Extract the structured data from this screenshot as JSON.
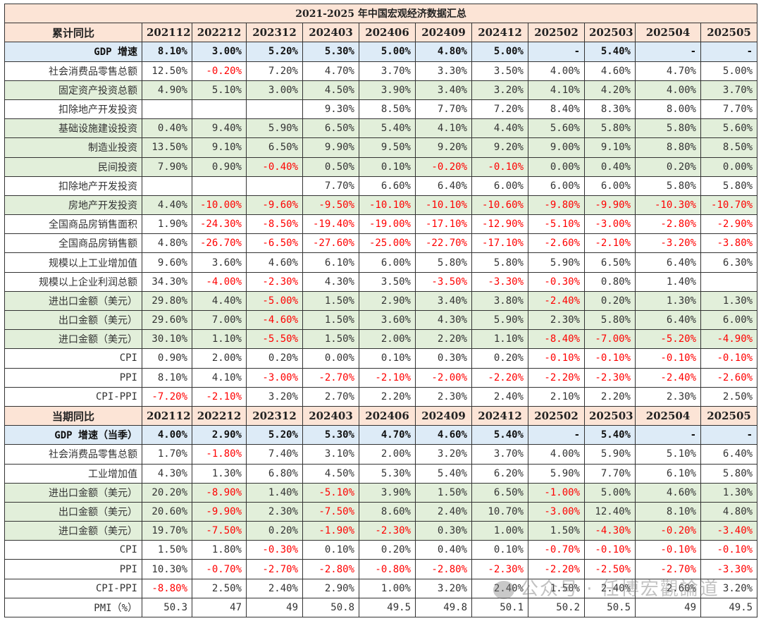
{
  "title": "2021-2025 年中国宏观经济数据汇总",
  "periods": [
    "202112",
    "202212",
    "202312",
    "202403",
    "202406",
    "202409",
    "202412",
    "202502",
    "202503",
    "202504",
    "202505"
  ],
  "sections": [
    {
      "header": "累计同比",
      "rows": [
        {
          "label": "GDP 增速",
          "style": "blue",
          "values": [
            "8.10%",
            "3.00%",
            "5.20%",
            "5.30%",
            "5.00%",
            "4.80%",
            "5.00%",
            "-",
            "5.40%",
            "-",
            "-"
          ]
        },
        {
          "label": "社会消费品零售总额",
          "style": "white",
          "values": [
            "12.50%",
            "-0.20%",
            "7.20%",
            "4.70%",
            "3.70%",
            "3.30%",
            "3.50%",
            "4.00%",
            "4.60%",
            "4.70%",
            "5.00%"
          ]
        },
        {
          "label": "固定资产投资总额",
          "style": "green",
          "values": [
            "4.90%",
            "5.10%",
            "3.00%",
            "4.50%",
            "3.90%",
            "3.40%",
            "3.20%",
            "4.10%",
            "4.20%",
            "4.00%",
            "3.70%"
          ]
        },
        {
          "label": "扣除地产开发投资",
          "style": "white",
          "values": [
            "",
            "",
            "",
            "9.30%",
            "8.50%",
            "7.70%",
            "7.20%",
            "8.40%",
            "8.30%",
            "8.00%",
            "7.70%"
          ]
        },
        {
          "label": "基础设施建设投资",
          "style": "green",
          "values": [
            "0.40%",
            "9.40%",
            "5.90%",
            "6.50%",
            "5.40%",
            "4.10%",
            "4.40%",
            "5.60%",
            "5.80%",
            "5.80%",
            "5.60%"
          ]
        },
        {
          "label": "制造业投资",
          "style": "green",
          "values": [
            "13.50%",
            "9.10%",
            "6.50%",
            "9.90%",
            "9.50%",
            "9.20%",
            "9.20%",
            "9.00%",
            "9.10%",
            "8.80%",
            "8.50%"
          ]
        },
        {
          "label": "民间投资",
          "style": "green",
          "values": [
            "7.90%",
            "0.90%",
            "-0.40%",
            "0.50%",
            "0.10%",
            "-0.20%",
            "-0.10%",
            "0.00%",
            "0.40%",
            "0.20%",
            "0.00%"
          ]
        },
        {
          "label": "扣除地产开发投资",
          "style": "white",
          "values": [
            "",
            "",
            "",
            "7.70%",
            "6.60%",
            "6.40%",
            "6.00%",
            "6.00%",
            "6.00%",
            "5.80%",
            "5.80%"
          ]
        },
        {
          "label": "房地产开发投资",
          "style": "green",
          "values": [
            "4.40%",
            "-10.00%",
            "-9.60%",
            "-9.50%",
            "-10.10%",
            "-10.10%",
            "-10.60%",
            "-9.80%",
            "-9.90%",
            "-10.30%",
            "-10.70%"
          ]
        },
        {
          "label": "全国商品房销售面积",
          "style": "white",
          "values": [
            "1.90%",
            "-24.30%",
            "-8.50%",
            "-19.40%",
            "-19.00%",
            "-17.10%",
            "-12.90%",
            "-5.10%",
            "-3.00%",
            "-2.80%",
            "-2.90%"
          ]
        },
        {
          "label": "全国商品房销售额",
          "style": "white",
          "values": [
            "4.80%",
            "-26.70%",
            "-6.50%",
            "-27.60%",
            "-25.00%",
            "-22.70%",
            "-17.10%",
            "-2.60%",
            "-2.10%",
            "-3.20%",
            "-3.80%"
          ]
        },
        {
          "label": "规模以上工业增加值",
          "style": "white",
          "values": [
            "9.60%",
            "3.60%",
            "4.60%",
            "6.10%",
            "6.00%",
            "5.80%",
            "5.80%",
            "5.90%",
            "6.50%",
            "6.40%",
            "6.30%"
          ]
        },
        {
          "label": "规模以上企业利润总额",
          "style": "white",
          "values": [
            "34.30%",
            "-4.00%",
            "-2.30%",
            "4.30%",
            "3.50%",
            "-3.50%",
            "-3.30%",
            "-0.30%",
            "0.80%",
            "1.40%",
            ""
          ]
        },
        {
          "label": "进出口金额（美元）",
          "style": "green",
          "values": [
            "29.80%",
            "4.40%",
            "-5.00%",
            "1.50%",
            "2.90%",
            "3.40%",
            "3.80%",
            "-2.40%",
            "0.20%",
            "1.30%",
            "1.30%"
          ]
        },
        {
          "label": "出口金额（美元）",
          "style": "green",
          "values": [
            "29.60%",
            "7.00%",
            "-4.60%",
            "1.50%",
            "3.60%",
            "4.30%",
            "5.90%",
            "2.30%",
            "5.80%",
            "6.40%",
            "6.00%"
          ]
        },
        {
          "label": "进口金额（美元）",
          "style": "green",
          "values": [
            "30.10%",
            "1.10%",
            "-5.50%",
            "1.50%",
            "2.00%",
            "2.20%",
            "1.10%",
            "-8.40%",
            "-7.00%",
            "-5.20%",
            "-4.90%"
          ]
        },
        {
          "label": "CPI",
          "style": "white",
          "values": [
            "0.90%",
            "2.00%",
            "0.20%",
            "0.00%",
            "0.10%",
            "0.30%",
            "0.20%",
            "-0.10%",
            "-0.10%",
            "-0.10%",
            "-0.10%"
          ]
        },
        {
          "label": "PPI",
          "style": "white",
          "values": [
            "8.10%",
            "4.10%",
            "-3.00%",
            "-2.70%",
            "-2.10%",
            "-2.00%",
            "-2.20%",
            "-2.20%",
            "-2.30%",
            "-2.40%",
            "-2.60%"
          ]
        },
        {
          "label": "CPI-PPI",
          "style": "white",
          "values": [
            "-7.20%",
            "-2.10%",
            "3.20%",
            "2.70%",
            "2.20%",
            "2.30%",
            "2.40%",
            "2.10%",
            "2.20%",
            "2.30%",
            "2.50%"
          ]
        }
      ]
    },
    {
      "header": "当期同比",
      "rows": [
        {
          "label": "GDP 增速（当季）",
          "style": "blue",
          "values": [
            "4.00%",
            "2.90%",
            "5.20%",
            "5.30%",
            "4.70%",
            "4.60%",
            "5.40%",
            "-",
            "5.40%",
            "-",
            "-"
          ]
        },
        {
          "label": "社会消费品零售总额",
          "style": "white",
          "values": [
            "1.70%",
            "-1.80%",
            "7.40%",
            "3.10%",
            "2.00%",
            "3.20%",
            "3.70%",
            "4.00%",
            "5.90%",
            "5.10%",
            "6.40%"
          ]
        },
        {
          "label": "工业增加值",
          "style": "white",
          "values": [
            "4.30%",
            "1.30%",
            "6.80%",
            "4.50%",
            "5.30%",
            "5.40%",
            "6.20%",
            "5.90%",
            "7.70%",
            "6.10%",
            "5.80%"
          ]
        },
        {
          "label": "进出口金额（美元）",
          "style": "green",
          "values": [
            "20.20%",
            "-8.90%",
            "1.40%",
            "-5.10%",
            "3.90%",
            "1.50%",
            "6.50%",
            "-1.00%",
            "5.00%",
            "4.60%",
            "1.30%"
          ]
        },
        {
          "label": "出口金额（美元）",
          "style": "green",
          "values": [
            "20.60%",
            "-9.90%",
            "2.30%",
            "-7.50%",
            "8.60%",
            "2.40%",
            "10.70%",
            "-3.00%",
            "12.40%",
            "8.10%",
            "4.80%"
          ]
        },
        {
          "label": "进口金额（美元）",
          "style": "green",
          "values": [
            "19.70%",
            "-7.50%",
            "0.20%",
            "-1.90%",
            "-2.30%",
            "0.30%",
            "1.00%",
            "1.50%",
            "-4.30%",
            "-0.20%",
            "-3.40%"
          ]
        },
        {
          "label": "CPI",
          "style": "white",
          "values": [
            "1.50%",
            "1.80%",
            "-0.30%",
            "0.10%",
            "0.20%",
            "0.40%",
            "0.10%",
            "-0.70%",
            "-0.10%",
            "-0.10%",
            "-0.10%"
          ]
        },
        {
          "label": "PPI",
          "style": "white",
          "values": [
            "10.30%",
            "-0.70%",
            "-2.70%",
            "-2.80%",
            "-0.80%",
            "-2.80%",
            "-2.30%",
            "-2.20%",
            "-2.50%",
            "-2.70%",
            "-3.30%"
          ]
        },
        {
          "label": "CPI-PPI",
          "style": "white",
          "values": [
            "-8.80%",
            "2.50%",
            "2.40%",
            "2.90%",
            "1.00%",
            "3.20%",
            "2.40%",
            "1.50%",
            "2.40%",
            "2.60%",
            "3.20%"
          ]
        },
        {
          "label": "PMI（%）",
          "style": "white",
          "values": [
            "50.3",
            "47",
            "49",
            "50.8",
            "49.5",
            "49.8",
            "50.1",
            "50.2",
            "50.5",
            "49",
            "49.5"
          ]
        }
      ]
    }
  ],
  "colors": {
    "header_bg": "#fce4d6",
    "gdp_bg": "#ddebf7",
    "green_bg": "#e2efda",
    "negative": "#ff0000"
  },
  "watermark": "公众号 · 任博宏觀論道"
}
